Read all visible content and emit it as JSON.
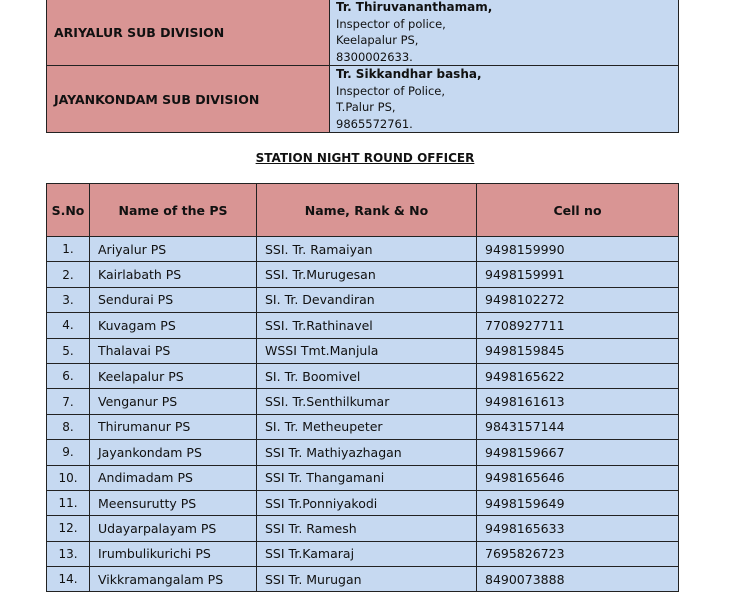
{
  "sub_divisions": [
    {
      "name": "ARIYALUR SUB DIVISION",
      "officer": "Tr. Thiruvananthamam,",
      "rank": "Inspector of police,",
      "station": "Keelapalur PS,",
      "phone": "8300002633."
    },
    {
      "name": "JAYANKONDAM SUB DIVISION",
      "officer": "Tr. Sikkandhar basha,",
      "rank": "Inspector of Police,",
      "station": "T.Palur PS,",
      "phone": "9865572761."
    }
  ],
  "heading": "STATION NIGHT ROUND OFFICER",
  "table": {
    "headers": [
      "S.No",
      "Name of the PS",
      "Name, Rank & No",
      "Cell no"
    ],
    "rows": [
      [
        "1.",
        "Ariyalur  PS",
        "SSI. Tr. Ramaiyan",
        "9498159990"
      ],
      [
        "2.",
        "Kairlabath PS",
        "SSI. Tr.Murugesan",
        "9498159991"
      ],
      [
        "3.",
        "Sendurai PS",
        "SI. Tr. Devandiran",
        "9498102272"
      ],
      [
        "4.",
        "Kuvagam PS",
        "SSI. Tr.Rathinavel",
        "7708927711"
      ],
      [
        "5.",
        "Thalavai  PS",
        "WSSI Tmt.Manjula",
        "9498159845"
      ],
      [
        "6.",
        "Keelapalur PS",
        "SI. Tr. Boomivel",
        "9498165622"
      ],
      [
        "7.",
        "Venganur PS",
        "SSI. Tr.Senthilkumar",
        "9498161613"
      ],
      [
        "8.",
        "Thirumanur PS",
        "SI. Tr. Metheupeter",
        "9843157144"
      ],
      [
        "9.",
        "Jayankondam PS",
        "SSI Tr. Mathiyazhagan",
        "9498159667"
      ],
      [
        "10.",
        "Andimadam PS",
        "SSI Tr. Thangamani",
        "9498165646"
      ],
      [
        "11.",
        "Meensurutty PS",
        "SSI Tr.Ponniyakodi",
        "9498159649"
      ],
      [
        "12.",
        "Udayarpalayam PS",
        "SSI Tr. Ramesh",
        "9498165633"
      ],
      [
        "13.",
        "Irumbulikurichi PS",
        "SSI Tr.Kamaraj",
        "7695826723"
      ],
      [
        "14.",
        "Vikkramangalam PS",
        "SSI Tr. Murugan",
        "8490073888"
      ]
    ]
  }
}
